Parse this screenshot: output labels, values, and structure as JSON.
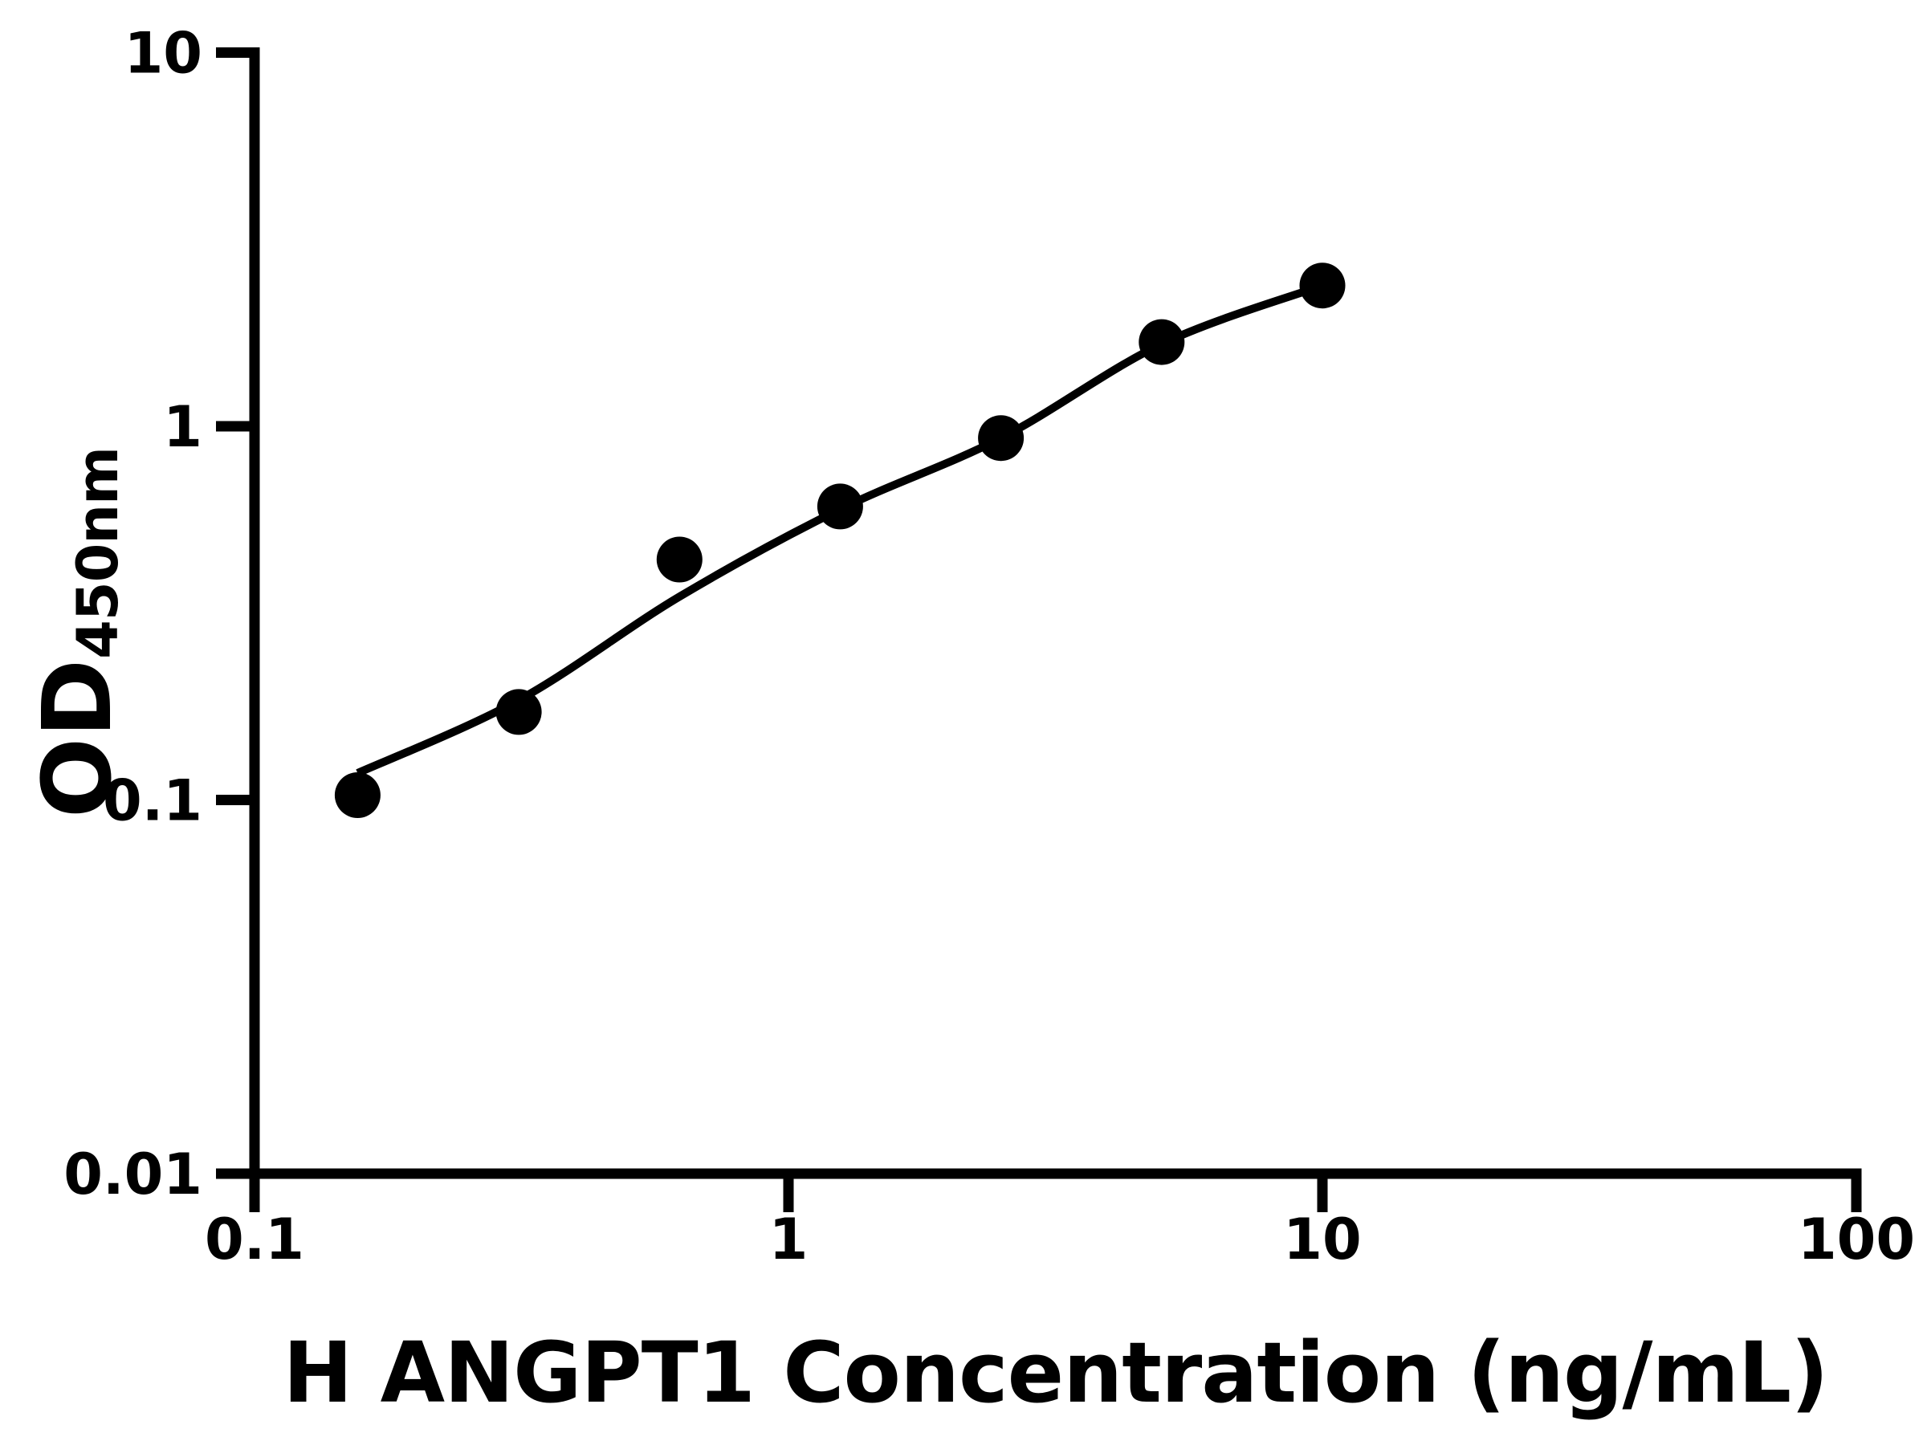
{
  "figure": {
    "background_color": "#ffffff",
    "foreground_color": "#000000"
  },
  "chart_data": {
    "type": "scatter",
    "title": "",
    "xlabel": "H ANGPT1 Concentration (ng/mL)",
    "ylabel_main": "OD",
    "ylabel_sub": "450nm",
    "x_scale": "log",
    "y_scale": "log",
    "xlim": [
      0.1,
      100
    ],
    "ylim": [
      0.01,
      10
    ],
    "grid": false,
    "legend_position": "none",
    "color": "#000000",
    "x_ticks": [
      {
        "value": 0.1,
        "label": "0.1"
      },
      {
        "value": 1,
        "label": "1"
      },
      {
        "value": 10,
        "label": "10"
      },
      {
        "value": 100,
        "label": "100"
      }
    ],
    "y_ticks": [
      {
        "value": 0.01,
        "label": "0.01"
      },
      {
        "value": 0.1,
        "label": "0.1"
      },
      {
        "value": 1,
        "label": "1"
      },
      {
        "value": 10,
        "label": "10"
      }
    ],
    "series": [
      {
        "name": "standard-points",
        "type": "scatter",
        "marker": "filled-circle",
        "points": [
          [
            0.156,
            0.103
          ],
          [
            0.3125,
            0.172
          ],
          [
            0.625,
            0.44
          ],
          [
            1.25,
            0.61
          ],
          [
            2.5,
            0.93
          ],
          [
            5,
            1.68
          ],
          [
            10,
            2.38
          ]
        ]
      },
      {
        "name": "fitted-curve",
        "type": "line",
        "points": [
          [
            0.156,
            0.118
          ],
          [
            0.3125,
            0.185
          ],
          [
            0.625,
            0.35
          ],
          [
            1.25,
            0.6
          ],
          [
            2.5,
            0.93
          ],
          [
            5,
            1.66
          ],
          [
            10,
            2.38
          ]
        ]
      }
    ]
  }
}
